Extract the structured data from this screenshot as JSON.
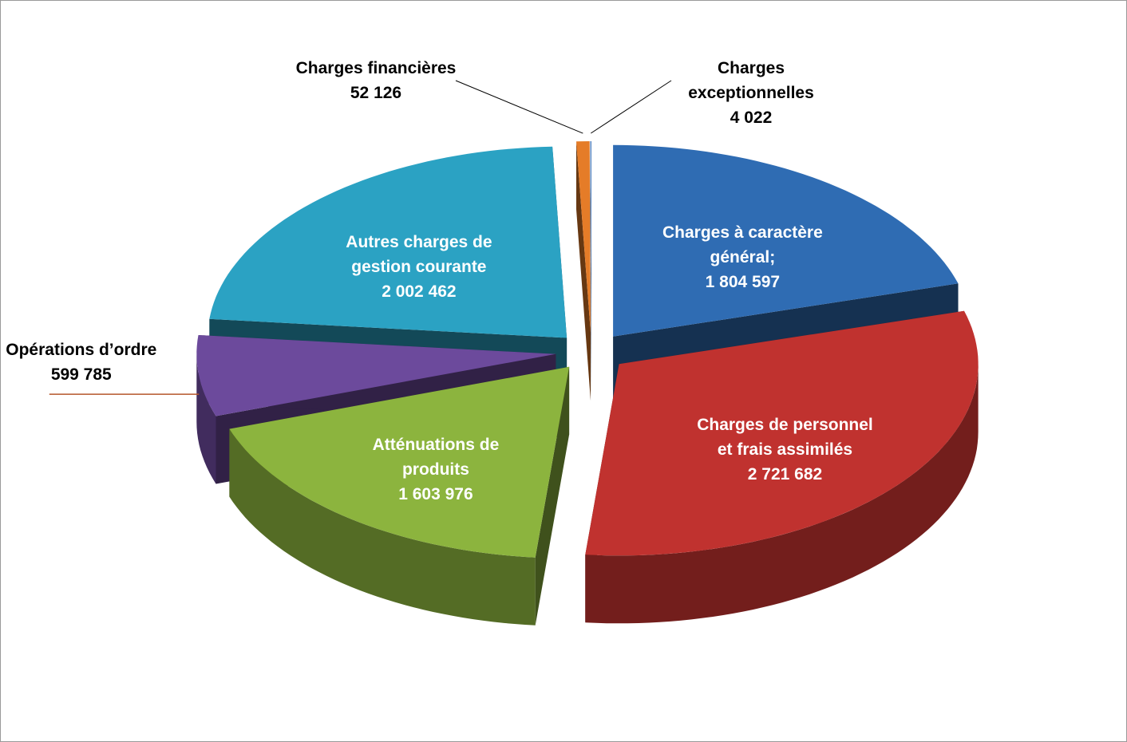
{
  "chart_data": {
    "type": "pie",
    "categories": [
      "Charges à caractère général;",
      "Charges de personnel et frais assimilés",
      "Atténuations de produits",
      "Opérations d’ordre",
      "Autres charges de gestion courante",
      "Charges financières",
      "Charges exceptionnelles"
    ],
    "values": [
      1804597,
      2721682,
      1603976,
      599785,
      2002462,
      52126,
      4022
    ],
    "value_labels": [
      "1 804 597",
      "2 721 682",
      "1 603 976",
      "599 785",
      "2 002 462",
      "52 126",
      "4 022"
    ],
    "colors": [
      "#2f6cb3",
      "#c0322f",
      "#8cb43e",
      "#6c4a9c",
      "#2ba2c3",
      "#e57c28",
      "#3d72b8"
    ]
  }
}
